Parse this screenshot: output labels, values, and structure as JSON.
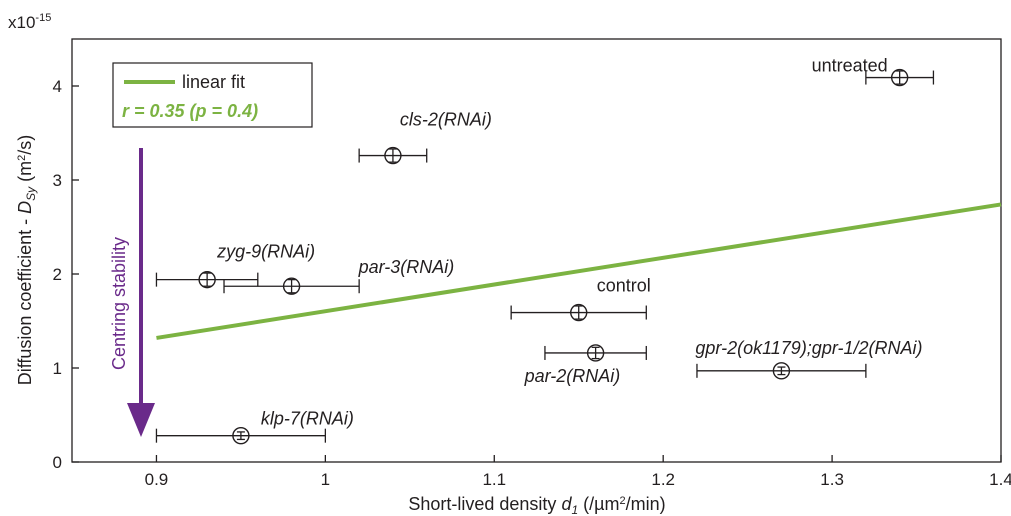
{
  "chart_data": {
    "type": "scatter",
    "xlabel": "Short-lived density d₁ (/µm²/min)",
    "ylabel": "Diffusion coefficient - D_Sy (m²/s)",
    "y_multiplier": "x10-15",
    "xlim": [
      0.85,
      1.4
    ],
    "ylim": [
      0,
      4.5
    ],
    "x_ticks": [
      0.9,
      1.0,
      1.1,
      1.2,
      1.3,
      1.4
    ],
    "x_tick_labels": [
      "0.9",
      "1",
      "1.1",
      "1.2",
      "1.3",
      "1.4"
    ],
    "y_ticks": [
      0,
      1,
      2,
      3,
      4
    ],
    "y_tick_labels": [
      "0",
      "1",
      "2",
      "3",
      "4"
    ],
    "grid": false,
    "points": [
      {
        "label": "untreated",
        "x": 1.34,
        "y": 4.09,
        "x_err": 0.02,
        "y_err": 0.07,
        "italic": false
      },
      {
        "label": "cls-2(RNAi)",
        "x": 1.04,
        "y": 3.26,
        "x_err": 0.02,
        "y_err": 0.07,
        "italic": true
      },
      {
        "label": "zyg-9(RNAi)",
        "x": 0.93,
        "y": 1.94,
        "x_err": 0.03,
        "y_err": 0.07,
        "italic": true
      },
      {
        "label": "par-3(RNAi)",
        "x": 0.98,
        "y": 1.87,
        "x_err": 0.04,
        "y_err": 0.07,
        "italic": true
      },
      {
        "label": "control",
        "x": 1.15,
        "y": 1.59,
        "x_err": 0.04,
        "y_err": 0.07,
        "italic": false
      },
      {
        "label": "par-2(RNAi)",
        "x": 1.16,
        "y": 1.16,
        "x_err": 0.03,
        "y_err": 0.06,
        "italic": true
      },
      {
        "label": "gpr-2(ok1179);gpr-1/2(RNAi)",
        "x": 1.27,
        "y": 0.97,
        "x_err": 0.05,
        "y_err": 0.04,
        "italic": true
      },
      {
        "label": "klp-7(RNAi)",
        "x": 0.95,
        "y": 0.28,
        "x_err": 0.05,
        "y_err": 0.04,
        "italic": true
      }
    ],
    "fit_line": {
      "name": "linear fit",
      "x": [
        0.9,
        1.4
      ],
      "y": [
        1.32,
        2.74
      ],
      "color": "#7cb342"
    },
    "legend": {
      "position": "top-left",
      "line_label": "linear fit",
      "stat_text": "r = 0.35 (p = 0.4)"
    },
    "annotation": {
      "text": "Centring stability",
      "color": "#6a2a8a",
      "direction": "down"
    }
  },
  "colors": {
    "fit": "#7cb342",
    "arrow": "#6a2a8a",
    "ink": "#231f20"
  }
}
